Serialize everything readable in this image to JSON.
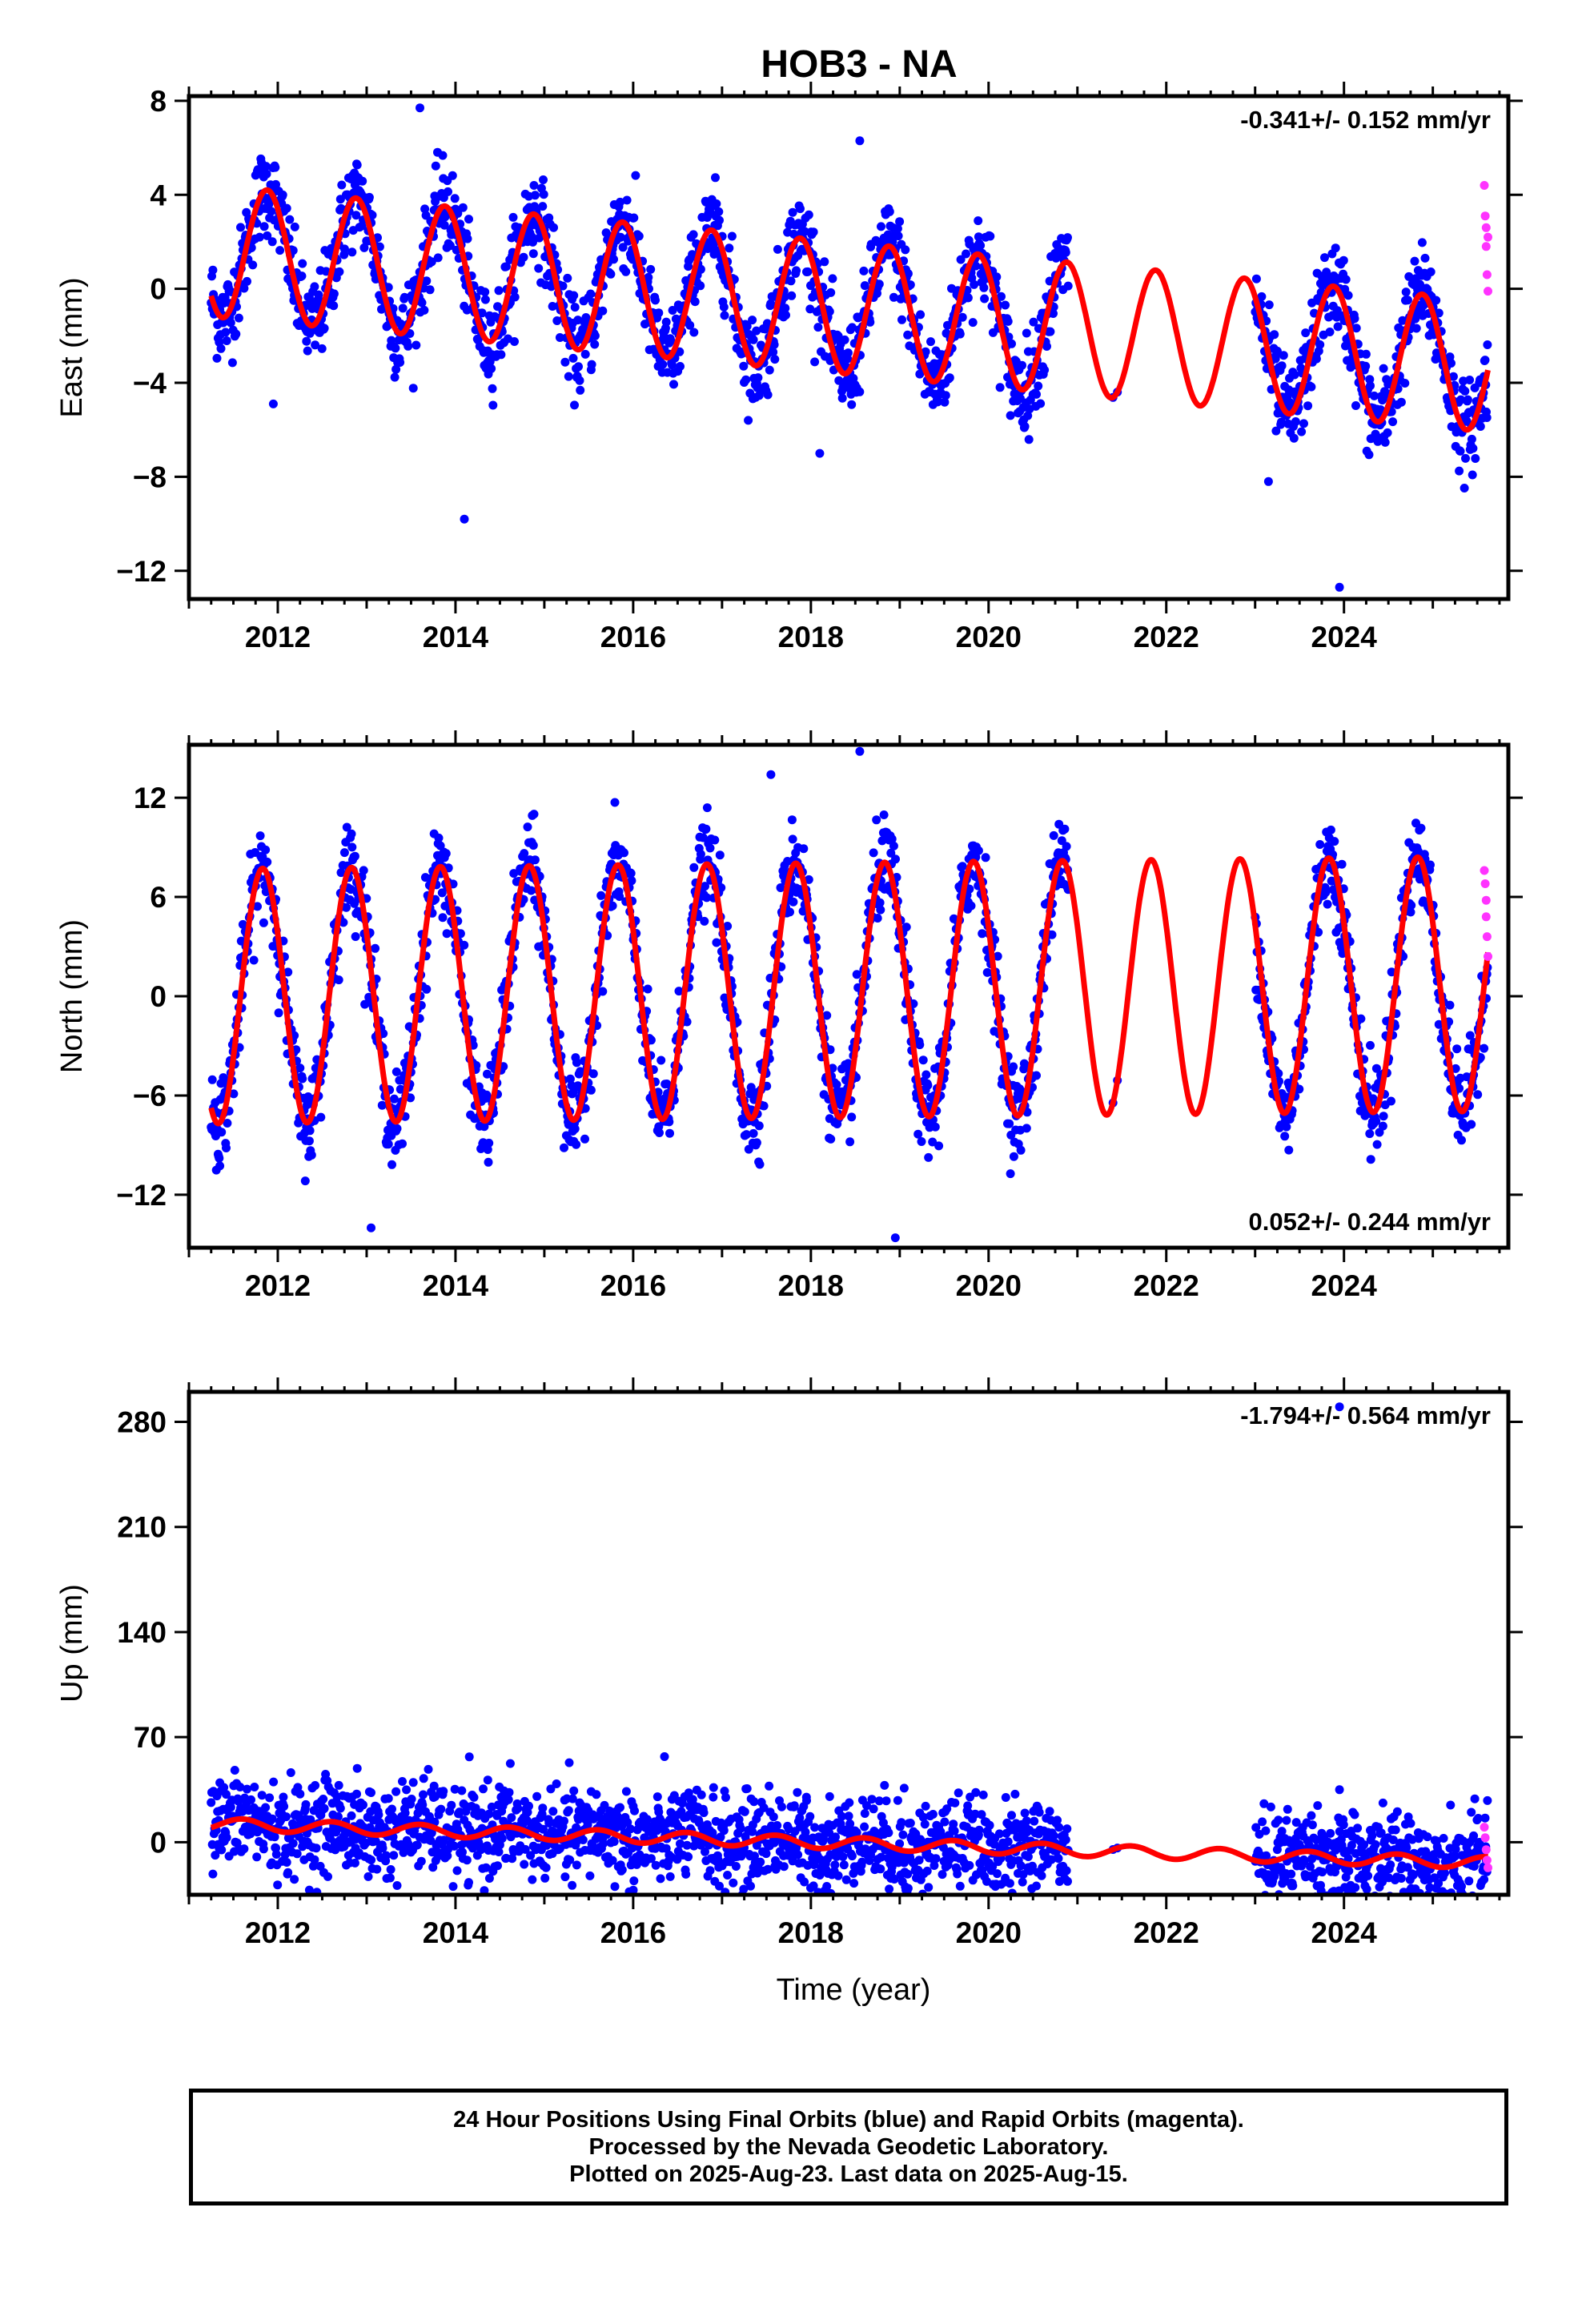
{
  "title": "HOB3 - NA",
  "colors": {
    "final_points": "#0000ff",
    "rapid_points": "#ff33ff",
    "model_line": "#ff0000",
    "frame": "#000000"
  },
  "x_axis_label": "Time (year)",
  "footer": {
    "line1": "24 Hour Positions Using Final Orbits (blue) and Rapid Orbits (magenta).",
    "line2": "Processed by the Nevada Geodetic Laboratory.",
    "line3": "Plotted on 2025-Aug-23. Last data on 2025-Aug-15."
  },
  "chart_data": [
    {
      "type": "scatter",
      "component": "east",
      "ylabel": "East (mm)",
      "rate_label": "-0.341+/- 0.152 mm/yr",
      "rate_position": "top-right",
      "xlim": [
        2011.0,
        2025.85
      ],
      "ylim": [
        -13.2,
        8.2
      ],
      "xticks": [
        2012,
        2014,
        2016,
        2018,
        2020,
        2022,
        2024
      ],
      "xtick_labels": [
        "2012",
        "2014",
        "2016",
        "2018",
        "2020",
        "2022",
        "2024"
      ],
      "yticks": [
        8,
        4,
        0,
        -4,
        -8,
        -12
      ],
      "ytick_labels": [
        "8",
        "4",
        "0",
        "−4",
        "−8",
        "−12"
      ],
      "model": {
        "offset": 1.6,
        "rate": -0.341,
        "ref_year": 2011.3,
        "annual_amplitude": 2.8,
        "annual_phase": 0.33
      },
      "outliers": [
        {
          "x": 2011.95,
          "y": -4.9
        },
        {
          "x": 2014.1,
          "y": -9.8
        },
        {
          "x": 2018.1,
          "y": -7.0
        },
        {
          "x": 2023.15,
          "y": -8.2
        },
        {
          "x": 2023.95,
          "y": -12.7
        },
        {
          "x": 2013.6,
          "y": 7.7
        },
        {
          "x": 2018.55,
          "y": 6.3
        }
      ],
      "rapid_points": [
        {
          "x": 2025.58,
          "y": 4.4
        },
        {
          "x": 2025.59,
          "y": 3.1
        },
        {
          "x": 2025.6,
          "y": 2.6
        },
        {
          "x": 2025.6,
          "y": 1.8
        },
        {
          "x": 2025.61,
          "y": 0.6
        },
        {
          "x": 2025.62,
          "y": -0.1
        },
        {
          "x": 2025.62,
          "y": 2.2
        }
      ]
    },
    {
      "type": "scatter",
      "component": "north",
      "ylabel": "North (mm)",
      "rate_label": "0.052+/- 0.244 mm/yr",
      "rate_position": "bottom-right",
      "xlim": [
        2011.0,
        2025.85
      ],
      "ylim": [
        -15.2,
        15.2
      ],
      "xticks": [
        2012,
        2014,
        2016,
        2018,
        2020,
        2022,
        2024
      ],
      "xtick_labels": [
        "2012",
        "2014",
        "2016",
        "2018",
        "2020",
        "2022",
        "2024"
      ],
      "yticks": [
        12,
        6,
        0,
        -6,
        -12
      ],
      "ytick_labels": [
        "12",
        "6",
        "0",
        "−6",
        "−12"
      ],
      "model": {
        "offset": 0.0,
        "rate": 0.052,
        "ref_year": 2011.3,
        "annual_amplitude": 7.7,
        "annual_phase": 0.28
      },
      "outliers": [
        {
          "x": 2013.05,
          "y": -14.0
        },
        {
          "x": 2018.95,
          "y": -14.6
        },
        {
          "x": 2017.55,
          "y": 13.4
        },
        {
          "x": 2018.55,
          "y": 14.8
        }
      ],
      "rapid_points": [
        {
          "x": 2025.58,
          "y": 7.6
        },
        {
          "x": 2025.59,
          "y": 6.8
        },
        {
          "x": 2025.6,
          "y": 5.8
        },
        {
          "x": 2025.6,
          "y": 4.8
        },
        {
          "x": 2025.61,
          "y": 3.6
        },
        {
          "x": 2025.62,
          "y": 2.4
        }
      ]
    },
    {
      "type": "scatter",
      "component": "up",
      "ylabel": "Up (mm)",
      "rate_label": "-1.794+/- 0.564 mm/yr",
      "rate_position": "top-right",
      "xlim": [
        2011.0,
        2025.85
      ],
      "ylim": [
        -35,
        300
      ],
      "xticks": [
        2012,
        2014,
        2016,
        2018,
        2020,
        2022,
        2024
      ],
      "xtick_labels": [
        "2012",
        "2014",
        "2016",
        "2018",
        "2020",
        "2022",
        "2024"
      ],
      "yticks": [
        280,
        210,
        140,
        70,
        0
      ],
      "ytick_labels": [
        "280",
        "210",
        "140",
        "70",
        "0"
      ],
      "model": {
        "offset": 12.0,
        "rate": -1.794,
        "ref_year": 2011.3,
        "annual_amplitude": 4.0,
        "annual_phase": 0.05
      },
      "outliers": [
        {
          "x": 2013.05,
          "y": 33
        },
        {
          "x": 2016.0,
          "y": 24
        },
        {
          "x": 2016.9,
          "y": 30
        },
        {
          "x": 2017.95,
          "y": 30
        },
        {
          "x": 2018.4,
          "y": -25
        },
        {
          "x": 2019.05,
          "y": 36
        },
        {
          "x": 2023.95,
          "y": 35
        },
        {
          "x": 2023.95,
          "y": 290
        }
      ],
      "rapid_points": [
        {
          "x": 2025.58,
          "y": 10
        },
        {
          "x": 2025.59,
          "y": 3
        },
        {
          "x": 2025.6,
          "y": -5
        },
        {
          "x": 2025.61,
          "y": -12
        },
        {
          "x": 2025.62,
          "y": -17
        }
      ]
    }
  ],
  "data_gaps": [
    [
      2020.9,
      2023.0
    ]
  ],
  "data_span": [
    2011.25,
    2025.62
  ]
}
